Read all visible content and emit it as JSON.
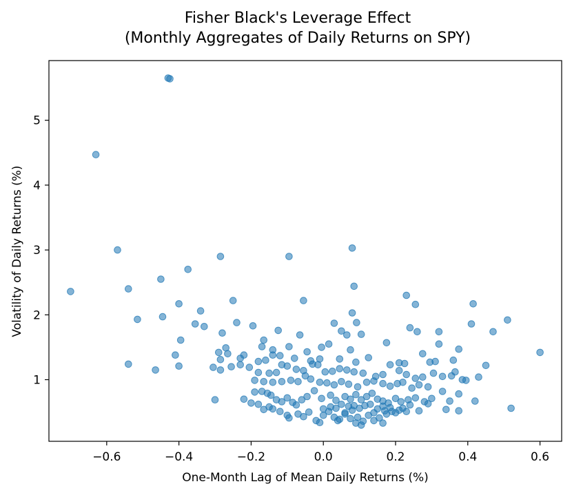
{
  "chart_data": {
    "type": "scatter",
    "title_line1": "Fisher Black's Leverage Effect",
    "title_line2": "(Monthly Aggregates of Daily Returns on SPY)",
    "xlabel": "One-Month Lag of Mean Daily Returns (%)",
    "ylabel": "Volatility of Daily Returns (%)",
    "xlim": [
      -0.76,
      0.66
    ],
    "ylim": [
      0.05,
      5.92
    ],
    "x_ticks": [
      -0.6,
      -0.4,
      -0.2,
      0.0,
      0.2,
      0.4,
      0.6
    ],
    "x_tick_labels": [
      "−0.6",
      "−0.4",
      "−0.2",
      "0.0",
      "0.2",
      "0.4",
      "0.6"
    ],
    "y_ticks": [
      1,
      2,
      3,
      4,
      5
    ],
    "y_tick_labels": [
      "1",
      "2",
      "3",
      "4",
      "5"
    ],
    "grid": false,
    "legend": "none",
    "marker_color": "#1f77b4",
    "marker_alpha": 0.55,
    "points": [
      [
        -0.43,
        5.65
      ],
      [
        -0.425,
        5.64
      ],
      [
        -0.63,
        4.47
      ],
      [
        -0.57,
        3.0
      ],
      [
        -0.285,
        2.9
      ],
      [
        -0.095,
        2.9
      ],
      [
        0.08,
        3.03
      ],
      [
        -0.375,
        2.7
      ],
      [
        -0.45,
        2.55
      ],
      [
        -0.54,
        2.4
      ],
      [
        -0.7,
        2.36
      ],
      [
        0.085,
        2.44
      ],
      [
        0.23,
        2.3
      ],
      [
        -0.25,
        2.22
      ],
      [
        -0.055,
        2.22
      ],
      [
        0.255,
        2.16
      ],
      [
        0.415,
        2.17
      ],
      [
        0.08,
        2.03
      ],
      [
        -0.4,
        2.17
      ],
      [
        -0.34,
        2.06
      ],
      [
        -0.445,
        1.97
      ],
      [
        -0.515,
        1.93
      ],
      [
        -0.355,
        1.86
      ],
      [
        -0.33,
        1.82
      ],
      [
        -0.24,
        1.88
      ],
      [
        -0.195,
        1.83
      ],
      [
        -0.125,
        1.76
      ],
      [
        0.03,
        1.87
      ],
      [
        0.092,
        1.88
      ],
      [
        0.05,
        1.75
      ],
      [
        0.24,
        1.8
      ],
      [
        0.26,
        1.74
      ],
      [
        0.32,
        1.74
      ],
      [
        0.51,
        1.92
      ],
      [
        0.41,
        1.86
      ],
      [
        0.47,
        1.74
      ],
      [
        -0.28,
        1.72
      ],
      [
        -0.165,
        1.61
      ],
      [
        -0.395,
        1.61
      ],
      [
        -0.065,
        1.69
      ],
      [
        0.065,
        1.69
      ],
      [
        0.105,
        1.7
      ],
      [
        -0.27,
        1.49
      ],
      [
        -0.17,
        1.51
      ],
      [
        -0.14,
        1.46
      ],
      [
        -0.095,
        1.51
      ],
      [
        -0.045,
        1.43
      ],
      [
        -0.005,
        1.5
      ],
      [
        0.015,
        1.55
      ],
      [
        0.075,
        1.46
      ],
      [
        0.175,
        1.57
      ],
      [
        0.32,
        1.55
      ],
      [
        0.375,
        1.47
      ],
      [
        0.6,
        1.42
      ],
      [
        0.275,
        1.4
      ],
      [
        -0.41,
        1.38
      ],
      [
        -0.29,
        1.42
      ],
      [
        -0.265,
        1.4
      ],
      [
        -0.285,
        1.31
      ],
      [
        -0.22,
        1.38
      ],
      [
        -0.23,
        1.33
      ],
      [
        -0.18,
        1.28
      ],
      [
        -0.16,
        1.3
      ],
      [
        -0.14,
        1.38
      ],
      [
        -0.12,
        1.37
      ],
      [
        -0.08,
        1.33
      ],
      [
        -0.035,
        1.29
      ],
      [
        -0.01,
        1.32
      ],
      [
        0.045,
        1.32
      ],
      [
        0.09,
        1.27
      ],
      [
        0.125,
        1.34
      ],
      [
        0.185,
        1.23
      ],
      [
        0.21,
        1.26
      ],
      [
        0.225,
        1.25
      ],
      [
        0.295,
        1.27
      ],
      [
        0.31,
        1.28
      ],
      [
        0.36,
        1.3
      ],
      [
        -0.54,
        1.24
      ],
      [
        -0.465,
        1.15
      ],
      [
        -0.4,
        1.21
      ],
      [
        -0.305,
        1.19
      ],
      [
        -0.285,
        1.15
      ],
      [
        -0.255,
        1.2
      ],
      [
        -0.23,
        1.23
      ],
      [
        -0.205,
        1.19
      ],
      [
        -0.18,
        1.11
      ],
      [
        -0.15,
        1.1
      ],
      [
        -0.13,
        1.11
      ],
      [
        -0.115,
        1.23
      ],
      [
        -0.1,
        1.21
      ],
      [
        -0.075,
        1.16
      ],
      [
        -0.055,
        1.14
      ],
      [
        -0.03,
        1.24
      ],
      [
        -0.015,
        1.23
      ],
      [
        0.005,
        1.12
      ],
      [
        0.025,
        1.13
      ],
      [
        0.045,
        1.17
      ],
      [
        0.065,
        1.15
      ],
      [
        0.085,
        1.12
      ],
      [
        0.11,
        1.1
      ],
      [
        0.145,
        1.05
      ],
      [
        0.165,
        1.08
      ],
      [
        0.21,
        1.14
      ],
      [
        0.23,
        1.08
      ],
      [
        0.255,
        1.02
      ],
      [
        0.275,
        1.04
      ],
      [
        0.305,
        1.1
      ],
      [
        0.33,
        1.05
      ],
      [
        0.355,
        1.06
      ],
      [
        0.365,
        1.12
      ],
      [
        0.385,
        1.0
      ],
      [
        0.43,
        1.04
      ],
      [
        0.45,
        1.22
      ],
      [
        0.395,
        0.99
      ],
      [
        -0.19,
        0.99
      ],
      [
        -0.165,
        0.97
      ],
      [
        -0.14,
        0.96
      ],
      [
        -0.115,
        0.97
      ],
      [
        -0.09,
        0.99
      ],
      [
        -0.07,
        0.97
      ],
      [
        -0.05,
        1.06
      ],
      [
        -0.035,
        1.01
      ],
      [
        -0.01,
        0.96
      ],
      [
        0.01,
        0.95
      ],
      [
        0.03,
        0.92
      ],
      [
        0.05,
        0.97
      ],
      [
        0.07,
        0.93
      ],
      [
        0.095,
        0.89
      ],
      [
        0.12,
        0.96
      ],
      [
        0.14,
        0.98
      ],
      [
        0.165,
        0.94
      ],
      [
        0.185,
        0.9
      ],
      [
        0.205,
        0.94
      ],
      [
        0.22,
        0.96
      ],
      [
        0.245,
        0.87
      ],
      [
        0.265,
        0.92
      ],
      [
        0.29,
        0.89
      ],
      [
        0.33,
        0.82
      ],
      [
        -0.3,
        0.69
      ],
      [
        -0.22,
        0.7
      ],
      [
        -0.2,
        0.64
      ],
      [
        -0.19,
        0.81
      ],
      [
        -0.17,
        0.82
      ],
      [
        -0.155,
        0.79
      ],
      [
        -0.145,
        0.76
      ],
      [
        -0.13,
        0.69
      ],
      [
        -0.115,
        0.66
      ],
      [
        -0.1,
        0.72
      ],
      [
        -0.085,
        0.65
      ],
      [
        -0.075,
        0.61
      ],
      [
        -0.06,
        0.69
      ],
      [
        -0.045,
        0.74
      ],
      [
        -0.025,
        0.83
      ],
      [
        -0.005,
        0.71
      ],
      [
        0.02,
        0.76
      ],
      [
        0.035,
        0.68
      ],
      [
        0.06,
        0.74
      ],
      [
        0.075,
        0.7
      ],
      [
        0.09,
        0.77
      ],
      [
        0.105,
        0.69
      ],
      [
        0.12,
        0.74
      ],
      [
        0.135,
        0.79
      ],
      [
        0.15,
        0.7
      ],
      [
        0.165,
        0.67
      ],
      [
        0.18,
        0.64
      ],
      [
        0.2,
        0.71
      ],
      [
        0.215,
        0.66
      ],
      [
        0.235,
        0.69
      ],
      [
        0.255,
        0.72
      ],
      [
        0.28,
        0.66
      ],
      [
        0.3,
        0.71
      ],
      [
        0.35,
        0.67
      ],
      [
        0.375,
        0.78
      ],
      [
        0.42,
        0.67
      ],
      [
        -0.095,
        0.41
      ],
      [
        -0.07,
        0.47
      ],
      [
        -0.055,
        0.43
      ],
      [
        -0.04,
        0.5
      ],
      [
        -0.02,
        0.37
      ],
      [
        0.0,
        0.45
      ],
      [
        0.015,
        0.51
      ],
      [
        0.03,
        0.42
      ],
      [
        0.045,
        0.39
      ],
      [
        0.06,
        0.47
      ],
      [
        0.08,
        0.53
      ],
      [
        0.095,
        0.42
      ],
      [
        0.11,
        0.36
      ],
      [
        0.125,
        0.45
      ],
      [
        0.14,
        0.49
      ],
      [
        0.155,
        0.41
      ],
      [
        0.17,
        0.52
      ],
      [
        0.185,
        0.57
      ],
      [
        0.2,
        0.49
      ],
      [
        0.22,
        0.56
      ],
      [
        0.24,
        0.61
      ],
      [
        0.265,
        0.52
      ],
      [
        0.29,
        0.63
      ],
      [
        0.34,
        0.54
      ],
      [
        0.375,
        0.52
      ],
      [
        0.52,
        0.56
      ],
      [
        -0.18,
        0.62
      ],
      [
        -0.15,
        0.58
      ],
      [
        -0.14,
        0.55
      ],
      [
        -0.12,
        0.51
      ],
      [
        -0.1,
        0.45
      ],
      [
        0.0,
        0.55
      ],
      [
        0.02,
        0.58
      ],
      [
        0.035,
        0.56
      ],
      [
        0.05,
        0.62
      ],
      [
        0.07,
        0.59
      ],
      [
        0.085,
        0.6
      ],
      [
        0.1,
        0.56
      ],
      [
        0.115,
        0.6
      ],
      [
        0.13,
        0.62
      ],
      [
        0.15,
        0.55
      ],
      [
        0.165,
        0.59
      ],
      [
        0.175,
        0.47
      ],
      [
        0.19,
        0.51
      ],
      [
        0.21,
        0.53
      ],
      [
        0.23,
        0.51
      ],
      [
        0.06,
        0.49
      ],
      [
        0.075,
        0.4
      ],
      [
        0.09,
        0.33
      ],
      [
        0.105,
        0.3
      ],
      [
        -0.01,
        0.34
      ],
      [
        0.14,
        0.37
      ],
      [
        0.165,
        0.33
      ],
      [
        -0.165,
        0.54
      ],
      [
        0.04,
        0.37
      ]
    ]
  }
}
